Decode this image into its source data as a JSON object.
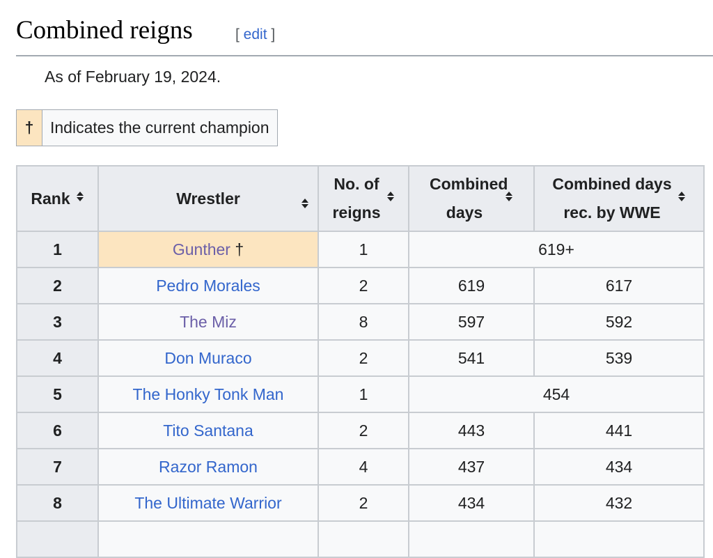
{
  "section": {
    "title": "Combined reigns",
    "edit_open": "[ ",
    "edit_label": "edit",
    "edit_close": " ]"
  },
  "as_of": "As of February 19, 2024.",
  "legend": {
    "symbol": "†",
    "text": "Indicates the current champion",
    "color": "#fce5c0"
  },
  "table": {
    "headers": [
      "Rank",
      "Wrestler",
      "No. of reigns",
      "Combined days",
      "Combined days rec. by WWE"
    ],
    "sort_icon": "sort-up-down-icon",
    "rows": [
      {
        "rank": "1",
        "wrestler": "Gunther",
        "mark": " †",
        "reigns": "1",
        "combined": "619+",
        "wwe": null,
        "visited": true,
        "current": true
      },
      {
        "rank": "2",
        "wrestler": "Pedro Morales",
        "reigns": "2",
        "combined": "619",
        "wwe": "617"
      },
      {
        "rank": "3",
        "wrestler": "The Miz",
        "reigns": "8",
        "combined": "597",
        "wwe": "592",
        "visited": true
      },
      {
        "rank": "4",
        "wrestler": "Don Muraco",
        "reigns": "2",
        "combined": "541",
        "wwe": "539"
      },
      {
        "rank": "5",
        "wrestler": "The Honky Tonk Man",
        "reigns": "1",
        "combined": "454",
        "wwe": null
      },
      {
        "rank": "6",
        "wrestler": "Tito Santana",
        "reigns": "2",
        "combined": "443",
        "wwe": "441"
      },
      {
        "rank": "7",
        "wrestler": "Razor Ramon",
        "reigns": "4",
        "combined": "437",
        "wwe": "434"
      },
      {
        "rank": "8",
        "wrestler": "The Ultimate Warrior",
        "reigns": "2",
        "combined": "434",
        "wwe": "432"
      },
      {
        "rank": "",
        "wrestler": "",
        "reigns": "",
        "combined": "",
        "wwe": ""
      }
    ]
  },
  "colors": {
    "link": "#3366cc",
    "visited_link": "#6b5fa8",
    "header_bg": "#eaecf0"
  }
}
